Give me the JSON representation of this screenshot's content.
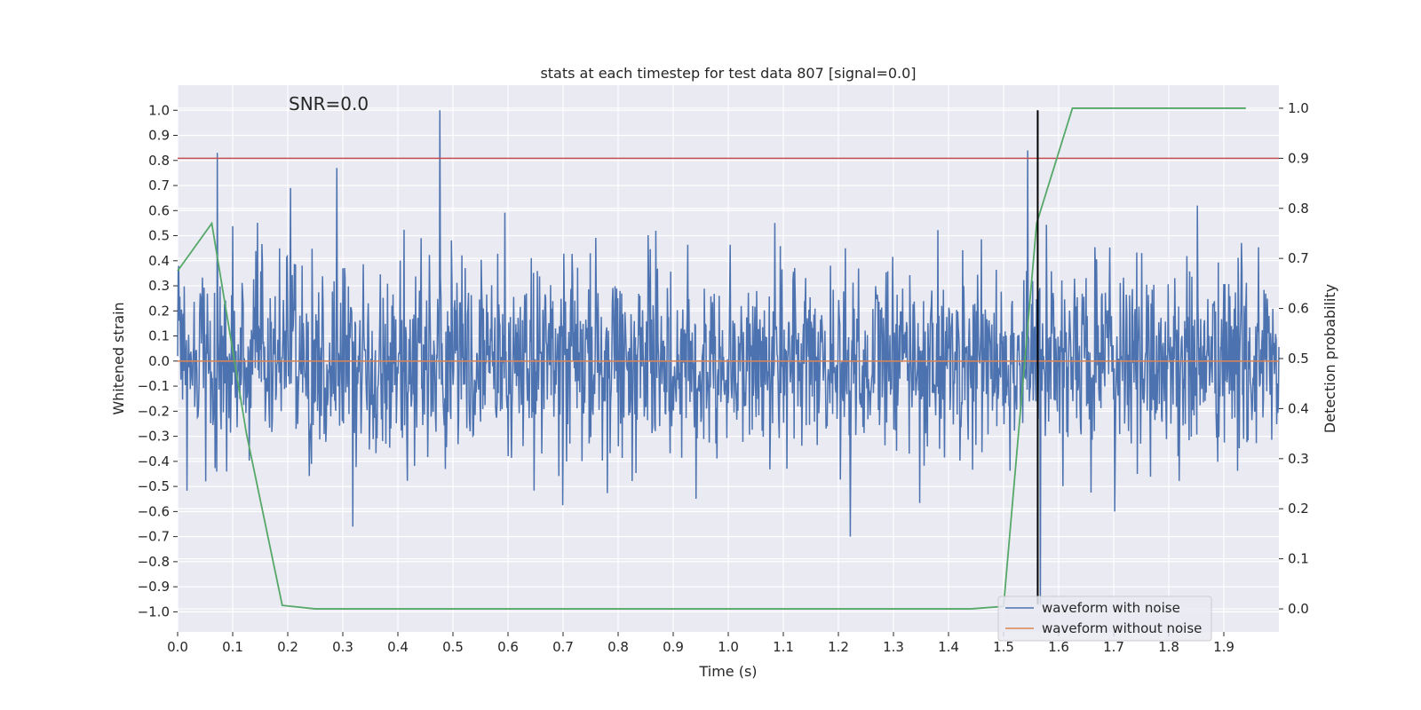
{
  "chart_data": {
    "type": "line",
    "title": "stats at each timestep for test data 807 [signal=0.0]",
    "xlabel": "Time (s)",
    "ylabel_left": "Whitened strain",
    "ylabel_right": "Detection probability",
    "annotation": "SNR=0.0",
    "xlim": [
      0.0,
      2.0
    ],
    "ylim_left": [
      -1.08,
      1.1
    ],
    "ylim_right": [
      -0.046,
      1.046
    ],
    "x_ticks": [
      0.0,
      0.1,
      0.2,
      0.3,
      0.4,
      0.5,
      0.6,
      0.7,
      0.8,
      0.9,
      1.0,
      1.1,
      1.2,
      1.3,
      1.4,
      1.5,
      1.6,
      1.7,
      1.8,
      1.9
    ],
    "x_tick_labels": [
      "0.0",
      "0.1",
      "0.2",
      "0.3",
      "0.4",
      "0.5",
      "0.6",
      "0.7",
      "0.8",
      "0.9",
      "1.0",
      "1.1",
      "1.2",
      "1.3",
      "1.4",
      "1.5",
      "1.6",
      "1.7",
      "1.8",
      "1.9"
    ],
    "y_left_ticks": [
      1.0,
      0.9,
      0.8,
      0.7,
      0.6,
      0.5,
      0.4,
      0.3,
      0.2,
      0.1,
      0.0,
      -0.1,
      -0.2,
      -0.3,
      -0.4,
      -0.5,
      -0.6,
      -0.7,
      -0.8,
      -0.9,
      -1.0
    ],
    "y_left_tick_labels": [
      "1.0",
      "0.9",
      "0.8",
      "0.7",
      "0.6",
      "0.5",
      "0.4",
      "0.3",
      "0.2",
      "0.1",
      "0.0",
      "−0.1",
      "−0.2",
      "−0.3",
      "−0.4",
      "−0.5",
      "−0.6",
      "−0.7",
      "−0.8",
      "−0.9",
      "−1.0"
    ],
    "y_right_ticks": [
      1.0,
      0.9,
      0.8,
      0.7,
      0.6,
      0.5,
      0.4,
      0.3,
      0.2,
      0.1,
      0.0
    ],
    "y_right_tick_labels": [
      "1.0",
      "0.9",
      "0.8",
      "0.7",
      "0.6",
      "0.5",
      "0.4",
      "0.3",
      "0.2",
      "0.1",
      "0.0"
    ],
    "grid": true,
    "legend_position": "lower-right",
    "series": [
      {
        "name": "waveform with noise",
        "axis": "left",
        "color": "#4c72b0",
        "kind": "noise",
        "n_samples": 2000,
        "x_range": [
          0.0,
          2.0
        ],
        "amplitude_range": [
          -0.97,
          1.0
        ],
        "peaks": [
          {
            "x": 0.072,
            "y": 0.83
          },
          {
            "x": 0.205,
            "y": 0.69
          },
          {
            "x": 0.289,
            "y": 0.77
          },
          {
            "x": 0.476,
            "y": 1.0
          },
          {
            "x": 1.544,
            "y": 0.84
          },
          {
            "x": 0.318,
            "y": -0.66
          },
          {
            "x": 1.222,
            "y": -0.7
          },
          {
            "x": 1.567,
            "y": -0.97
          }
        ]
      },
      {
        "name": "waveform without noise",
        "axis": "left",
        "color": "#dd8452",
        "x": [
          0.0,
          2.0
        ],
        "y": [
          0.0,
          0.0
        ]
      },
      {
        "name": "",
        "axis": "right",
        "color": "#55a868",
        "x": [
          0.0,
          0.062,
          0.125,
          0.19,
          0.25,
          0.5,
          1.0,
          1.25,
          1.44,
          1.5,
          1.56,
          1.625,
          1.69,
          1.75,
          1.875,
          1.94
        ],
        "y": [
          0.675,
          0.77,
          0.35,
          0.007,
          0.0,
          0.0,
          0.0,
          0.0,
          0.0,
          0.005,
          0.77,
          1.0,
          1.0,
          1.0,
          1.0,
          1.0
        ]
      }
    ],
    "threshold_line": {
      "axis": "right",
      "y": 0.9,
      "color": "#c44e52"
    },
    "vertical_line": {
      "axis": "left",
      "x": 1.562,
      "y_range": [
        -0.97,
        1.0
      ],
      "color": "#000000"
    }
  }
}
